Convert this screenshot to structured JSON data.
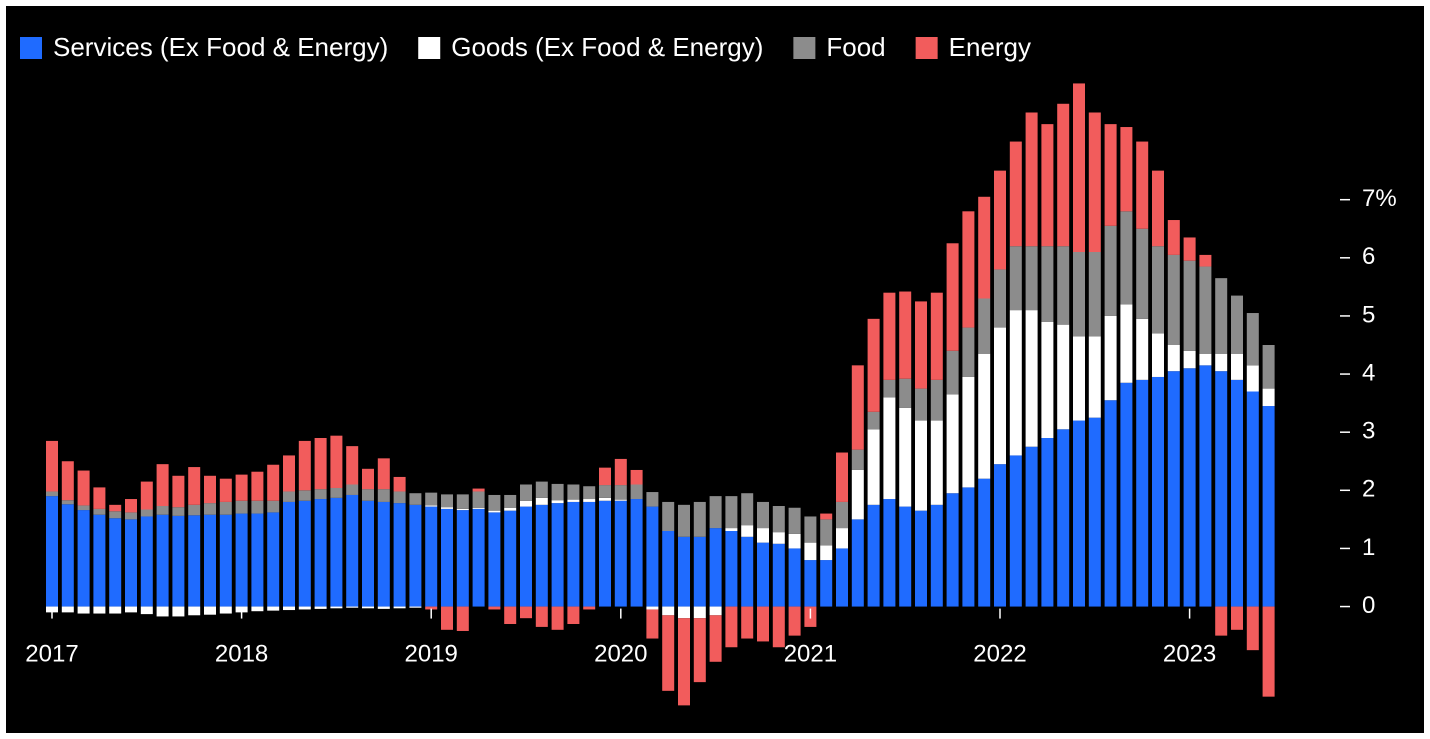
{
  "chart_data": {
    "type": "stacked_bar",
    "categories": [
      "2017",
      null,
      null,
      null,
      null,
      null,
      null,
      null,
      null,
      null,
      null,
      null,
      "2018",
      null,
      null,
      null,
      null,
      null,
      null,
      null,
      null,
      null,
      null,
      null,
      "2019",
      null,
      null,
      null,
      null,
      null,
      null,
      null,
      null,
      null,
      null,
      null,
      "2020",
      null,
      null,
      null,
      null,
      null,
      null,
      null,
      null,
      null,
      null,
      null,
      "2021",
      null,
      null,
      null,
      null,
      null,
      null,
      null,
      null,
      null,
      null,
      null,
      "2022",
      null,
      null,
      null,
      null,
      null,
      null,
      null,
      null,
      null,
      null,
      null,
      "2023",
      null,
      null,
      null,
      null,
      null
    ],
    "series": [
      {
        "name": "Services (Ex Food & Energy)",
        "color": "#1f6bff",
        "values": [
          1.9,
          1.76,
          1.66,
          1.58,
          1.52,
          1.5,
          1.55,
          1.58,
          1.56,
          1.57,
          1.58,
          1.58,
          1.6,
          1.6,
          1.62,
          1.8,
          1.82,
          1.85,
          1.87,
          1.92,
          1.82,
          1.8,
          1.78,
          1.75,
          1.72,
          1.68,
          1.66,
          1.68,
          1.62,
          1.65,
          1.72,
          1.75,
          1.78,
          1.8,
          1.8,
          1.82,
          1.82,
          1.85,
          1.72,
          1.3,
          1.2,
          1.2,
          1.35,
          1.3,
          1.2,
          1.1,
          1.08,
          1.0,
          0.8,
          0.8,
          1.0,
          1.5,
          1.75,
          1.85,
          1.72,
          1.65,
          1.75,
          1.95,
          2.05,
          2.2,
          2.45,
          2.6,
          2.75,
          2.9,
          3.05,
          3.2,
          3.25,
          3.55,
          3.85,
          3.9,
          3.95,
          4.05,
          4.1,
          4.15,
          4.05,
          3.9,
          3.7,
          3.45
        ]
      },
      {
        "name": "Goods (Ex Food & Energy)",
        "color": "#ffffff",
        "values": [
          -0.1,
          -0.1,
          -0.12,
          -0.12,
          -0.12,
          -0.1,
          -0.13,
          -0.17,
          -0.17,
          -0.15,
          -0.14,
          -0.12,
          -0.1,
          -0.08,
          -0.07,
          -0.06,
          -0.05,
          -0.04,
          -0.03,
          -0.02,
          -0.03,
          -0.04,
          -0.03,
          -0.02,
          0.02,
          0.03,
          0.02,
          0.02,
          0.03,
          0.05,
          0.1,
          0.12,
          0.05,
          0.04,
          0.05,
          0.05,
          0.02,
          0.0,
          -0.05,
          -0.15,
          -0.2,
          -0.2,
          -0.15,
          0.05,
          0.2,
          0.25,
          0.2,
          0.25,
          0.3,
          0.25,
          0.35,
          0.85,
          1.3,
          1.75,
          1.7,
          1.55,
          1.45,
          1.7,
          1.9,
          2.15,
          2.35,
          2.5,
          2.35,
          2.0,
          1.8,
          1.45,
          1.4,
          1.45,
          1.35,
          1.05,
          0.75,
          0.45,
          0.3,
          0.2,
          0.3,
          0.45,
          0.45,
          0.3
        ]
      },
      {
        "name": "Food",
        "color": "#8c8c8c",
        "values": [
          0.08,
          0.07,
          0.08,
          0.1,
          0.12,
          0.12,
          0.12,
          0.15,
          0.15,
          0.18,
          0.2,
          0.22,
          0.22,
          0.22,
          0.2,
          0.18,
          0.18,
          0.17,
          0.17,
          0.18,
          0.2,
          0.22,
          0.2,
          0.2,
          0.22,
          0.22,
          0.25,
          0.28,
          0.27,
          0.22,
          0.28,
          0.28,
          0.28,
          0.26,
          0.22,
          0.22,
          0.25,
          0.25,
          0.25,
          0.5,
          0.55,
          0.6,
          0.55,
          0.55,
          0.55,
          0.45,
          0.45,
          0.45,
          0.45,
          0.45,
          0.45,
          0.35,
          0.3,
          0.3,
          0.5,
          0.55,
          0.7,
          0.75,
          0.85,
          0.95,
          1.0,
          1.1,
          1.1,
          1.3,
          1.35,
          1.45,
          1.45,
          1.55,
          1.6,
          1.55,
          1.5,
          1.55,
          1.55,
          1.5,
          1.3,
          1.0,
          0.9,
          0.75
        ]
      },
      {
        "name": "Energy",
        "color": "#f25c5c",
        "values": [
          0.87,
          0.67,
          0.6,
          0.37,
          0.11,
          0.23,
          0.48,
          0.72,
          0.54,
          0.65,
          0.47,
          0.4,
          0.45,
          0.5,
          0.62,
          0.62,
          0.85,
          0.88,
          0.9,
          0.66,
          0.35,
          0.53,
          0.25,
          0.0,
          -0.05,
          -0.4,
          -0.42,
          0.05,
          -0.05,
          -0.3,
          -0.2,
          -0.35,
          -0.4,
          -0.3,
          -0.05,
          0.3,
          0.45,
          0.25,
          -0.5,
          -1.3,
          -1.5,
          -1.1,
          -0.8,
          -0.7,
          -0.55,
          -0.6,
          -0.7,
          -0.5,
          -0.35,
          0.1,
          0.85,
          1.45,
          1.6,
          1.5,
          1.5,
          1.5,
          1.5,
          1.85,
          2.0,
          1.75,
          1.7,
          1.8,
          2.3,
          2.1,
          2.45,
          2.9,
          2.4,
          1.75,
          1.45,
          1.5,
          1.3,
          0.6,
          0.4,
          0.2,
          -0.5,
          -0.4,
          -0.75,
          -1.55
        ]
      }
    ],
    "ylim": [
      -1.9,
      9.3
    ],
    "yticks": [
      0,
      1,
      2,
      3,
      4,
      5,
      6,
      {
        "value": 7,
        "label": "7%"
      }
    ],
    "legend": "top-left"
  }
}
